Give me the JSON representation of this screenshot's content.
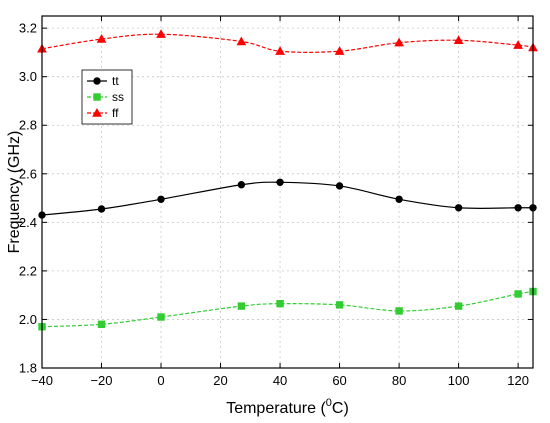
{
  "chart_data": {
    "type": "line",
    "title": "",
    "xlabel": "Temperature (",
    "xlabel_sup": "0",
    "xlabel_suffix": "C)",
    "ylabel": "Frequency (GHz)",
    "xlim": [
      -40,
      125
    ],
    "ylim": [
      1.8,
      3.25
    ],
    "x_ticks": [
      -40,
      -20,
      0,
      20,
      40,
      60,
      80,
      100,
      120
    ],
    "x_tick_labels": [
      "−40",
      "−20",
      "0",
      "20",
      "40",
      "60",
      "80",
      "100",
      "120"
    ],
    "y_ticks": [
      1.8,
      2.0,
      2.2,
      2.4,
      2.6,
      2.8,
      3.0,
      3.2
    ],
    "y_tick_labels": [
      "1.8",
      "2.0",
      "2.2",
      "2.4",
      "2.6",
      "2.8",
      "3.0",
      "3.2"
    ],
    "grid": true,
    "legend_position": "upper-left",
    "series": [
      {
        "name": "tt",
        "color": "#000000",
        "marker": "circle",
        "dash": "solid",
        "x": [
          -40,
          -20,
          0,
          27,
          40,
          60,
          80,
          100,
          120,
          125
        ],
        "y": [
          2.43,
          2.455,
          2.495,
          2.555,
          2.565,
          2.55,
          2.495,
          2.46,
          2.46,
          2.46
        ]
      },
      {
        "name": "ss",
        "color": "#33cc33",
        "marker": "square",
        "dash": "dashed",
        "x": [
          -40,
          -20,
          0,
          27,
          40,
          60,
          80,
          100,
          120,
          125
        ],
        "y": [
          1.97,
          1.98,
          2.01,
          2.055,
          2.065,
          2.06,
          2.035,
          2.055,
          2.105,
          2.115
        ]
      },
      {
        "name": "ff",
        "color": "#ff0000",
        "marker": "triangle",
        "dash": "dashed",
        "x": [
          -40,
          -20,
          0,
          27,
          40,
          60,
          80,
          100,
          120,
          125
        ],
        "y": [
          3.115,
          3.155,
          3.175,
          3.145,
          3.105,
          3.105,
          3.14,
          3.15,
          3.13,
          3.12
        ]
      }
    ]
  }
}
